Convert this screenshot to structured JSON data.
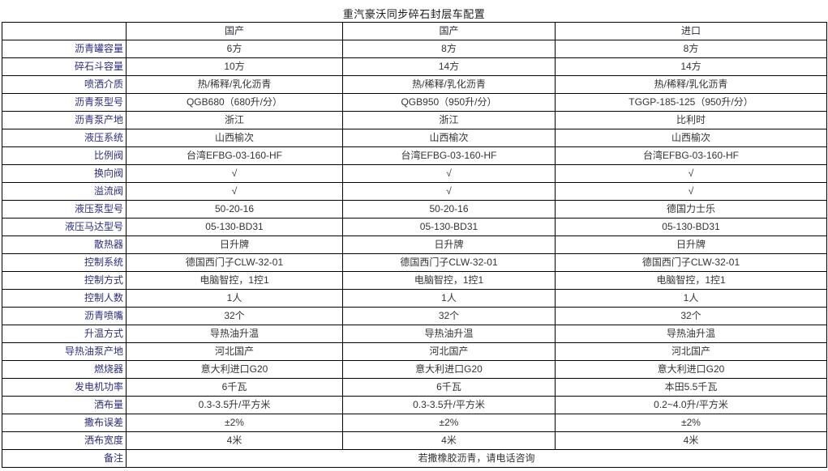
{
  "title": "重汽豪沃同步碎石封层车配置",
  "table": {
    "columns": [
      "国产",
      "国产",
      "进口"
    ],
    "rows": [
      {
        "label": "沥青罐容量",
        "values": [
          "6方",
          "8方",
          "8方"
        ]
      },
      {
        "label": "碎石斗容量",
        "values": [
          "10方",
          "14方",
          "14方"
        ]
      },
      {
        "label": "喷洒介质",
        "values": [
          "热/稀释/乳化沥青",
          "热/稀释/乳化沥青",
          "热/稀释/乳化沥青"
        ]
      },
      {
        "label": "沥青泵型号",
        "values": [
          "QGB680（680升/分）",
          "QGB950（950升/分）",
          "TGGP-185-125（950升/分）"
        ]
      },
      {
        "label": "沥青泵产地",
        "values": [
          "浙江",
          "浙江",
          "比利时"
        ]
      },
      {
        "label": "液压系统",
        "values": [
          "山西榆次",
          "山西榆次",
          "山西榆次"
        ]
      },
      {
        "label": "比例阀",
        "values": [
          "台湾EFBG-03-160-HF",
          "台湾EFBG-03-160-HF",
          "台湾EFBG-03-160-HF"
        ]
      },
      {
        "label": "换向阀",
        "values": [
          "√",
          "√",
          "√"
        ]
      },
      {
        "label": "溢流阀",
        "values": [
          "√",
          "√",
          "√"
        ]
      },
      {
        "label": "液压泵型号",
        "values": [
          "50-20-16",
          "50-20-16",
          "德国力士乐"
        ]
      },
      {
        "label": "液压马达型号",
        "values": [
          "05-130-BD31",
          "05-130-BD31",
          "05-130-BD31"
        ]
      },
      {
        "label": "散热器",
        "values": [
          "日升牌",
          "日升牌",
          "日升牌"
        ]
      },
      {
        "label": "控制系统",
        "values": [
          "德国西门子CLW-32-01",
          "德国西门子CLW-32-01",
          "德国西门子CLW-32-01"
        ]
      },
      {
        "label": "控制方式",
        "values": [
          "电脑智控，1控1",
          "电脑智控，1控1",
          "电脑智控，1控1"
        ]
      },
      {
        "label": "控制人数",
        "values": [
          "1人",
          "1人",
          "1人"
        ]
      },
      {
        "label": "沥青喷嘴",
        "values": [
          "32个",
          "32个",
          "32个"
        ]
      },
      {
        "label": "升温方式",
        "values": [
          "导热油升温",
          "导热油升温",
          "导热油升温"
        ]
      },
      {
        "label": "导热油泵产地",
        "values": [
          "河北国产",
          "河北国产",
          "河北国产"
        ]
      },
      {
        "label": "燃烧器",
        "values": [
          "意大利进口G20",
          "意大利进口G20",
          "意大利进口G20"
        ]
      },
      {
        "label": "发电机功率",
        "values": [
          "6千瓦",
          "6千瓦",
          "本田5.5千瓦"
        ]
      },
      {
        "label": "洒布量",
        "values": [
          "0.3-3.5升/平方米",
          "0.3-3.5升/平方米",
          "0.2~4.0升/平方米"
        ]
      },
      {
        "label": "撒布误差",
        "values": [
          "±2%",
          "±2%",
          "±2%"
        ]
      },
      {
        "label": "洒布宽度",
        "values": [
          "4米",
          "4米",
          "4米"
        ]
      }
    ],
    "remark": {
      "label": "备注",
      "value": "若撒橡胶沥青，请电话咨询"
    }
  },
  "colors": {
    "label_text": "#2b2b80",
    "value_text": "#333333",
    "border": "#000000",
    "title_text": "#1a1a1a",
    "background": "#ffffff"
  }
}
